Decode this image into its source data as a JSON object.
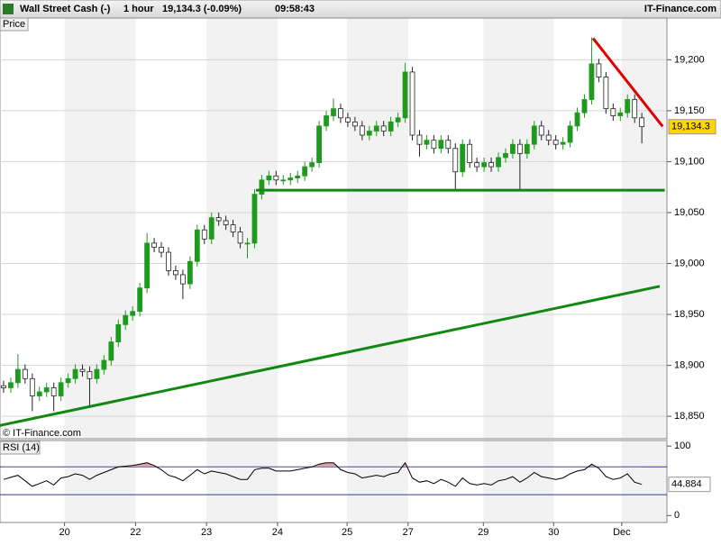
{
  "header": {
    "instrument": "Wall Street Cash (-)",
    "interval": "1 hour",
    "quote": "19,134.3 (-0.09%)",
    "time": "09:58:43",
    "brand": "IT-Finance.com"
  },
  "chart_data": [
    {
      "type": "candlestick",
      "panel_label": "Price",
      "watermark": "© IT-Finance.com",
      "xlim": [
        -0.5,
        92.5
      ],
      "ylim": [
        18828,
        19241
      ],
      "yticks": [
        {
          "value": 18850,
          "label": "18,850"
        },
        {
          "value": 18900,
          "label": "18,900"
        },
        {
          "value": 18950,
          "label": "18,950"
        },
        {
          "value": 19000,
          "label": "19,000"
        },
        {
          "value": 19050,
          "label": "19,050"
        },
        {
          "value": 19100,
          "label": "19,100"
        },
        {
          "value": 19150,
          "label": "19,150"
        },
        {
          "value": 19200,
          "label": "19,200"
        }
      ],
      "up_color": "#1f9a1f",
      "down_color": "#222222",
      "grid": true,
      "open": [
        18880,
        18878,
        18883,
        18896,
        18887,
        18870,
        18874,
        18878,
        18870,
        18883,
        18887,
        18896,
        18894,
        18887,
        18896,
        18905,
        18923,
        18940,
        18949,
        18953,
        18976,
        19020,
        19016,
        19011,
        18993,
        18989,
        18980,
        19002,
        19033,
        19024,
        19045,
        19042,
        19038,
        19031,
        19020,
        19020,
        19068,
        19082,
        19086,
        19082,
        19082,
        19084,
        19086,
        19095,
        19099,
        19135,
        19145,
        19152,
        19143,
        19139,
        19135,
        19126,
        19130,
        19135,
        19130,
        19139,
        19143,
        19188,
        19126,
        19117,
        19121,
        19113,
        19121,
        19113,
        19090,
        19117,
        19099,
        19095,
        19099,
        19095,
        19104,
        19108,
        19117,
        19108,
        19117,
        19135,
        19126,
        19121,
        19117,
        19119,
        19135,
        19148,
        19161,
        19196,
        19183,
        19152,
        19145,
        19148,
        19161,
        19143
      ],
      "high": [
        18885,
        18888,
        18911,
        18901,
        18892,
        18879,
        18883,
        18883,
        18888,
        18892,
        18901,
        18901,
        18899,
        18901,
        18910,
        18928,
        18945,
        18954,
        18958,
        18981,
        19030,
        19025,
        19021,
        19016,
        18998,
        18994,
        19007,
        19038,
        19038,
        19050,
        19050,
        19047,
        19043,
        19036,
        19025,
        19073,
        19087,
        19091,
        19091,
        19087,
        19089,
        19091,
        19100,
        19104,
        19140,
        19150,
        19162,
        19157,
        19148,
        19144,
        19140,
        19135,
        19140,
        19140,
        19144,
        19148,
        19197,
        19193,
        19131,
        19126,
        19126,
        19126,
        19126,
        19118,
        19122,
        19122,
        19104,
        19104,
        19104,
        19109,
        19113,
        19122,
        19122,
        19122,
        19140,
        19140,
        19131,
        19126,
        19124,
        19140,
        19153,
        19166,
        19222,
        19201,
        19188,
        19157,
        19153,
        19166,
        19166,
        19148
      ],
      "low": [
        18873,
        18873,
        18878,
        18882,
        18855,
        18865,
        18869,
        18855,
        18865,
        18878,
        18882,
        18889,
        18860,
        18882,
        18891,
        18900,
        18918,
        18935,
        18944,
        18948,
        18971,
        19011,
        19006,
        18988,
        18984,
        18965,
        18975,
        18997,
        19019,
        19019,
        19037,
        19033,
        19026,
        19015,
        19005,
        19015,
        19063,
        19077,
        19077,
        19077,
        19077,
        19079,
        19081,
        19090,
        19094,
        19130,
        19140,
        19138,
        19134,
        19130,
        19121,
        19121,
        19125,
        19125,
        19125,
        19134,
        19138,
        19121,
        19105,
        19112,
        19108,
        19108,
        19108,
        19072,
        19085,
        19094,
        19090,
        19090,
        19090,
        19090,
        19099,
        19103,
        19073,
        19103,
        19112,
        19121,
        19116,
        19112,
        19112,
        19114,
        19130,
        19143,
        19156,
        19178,
        19147,
        19140,
        19140,
        19143,
        19138,
        19118
      ],
      "close": [
        18878,
        18883,
        18896,
        18887,
        18870,
        18874,
        18878,
        18870,
        18883,
        18887,
        18896,
        18894,
        18887,
        18896,
        18905,
        18923,
        18940,
        18949,
        18953,
        18976,
        19020,
        19016,
        19011,
        18993,
        18989,
        18980,
        19002,
        19033,
        19024,
        19045,
        19042,
        19038,
        19031,
        19020,
        19020,
        19068,
        19082,
        19086,
        19082,
        19082,
        19084,
        19086,
        19095,
        19099,
        19135,
        19145,
        19152,
        19143,
        19139,
        19135,
        19126,
        19130,
        19135,
        19130,
        19139,
        19143,
        19188,
        19126,
        19117,
        19121,
        19113,
        19121,
        19113,
        19090,
        19117,
        19099,
        19095,
        19099,
        19095,
        19104,
        19108,
        19117,
        19108,
        19117,
        19135,
        19126,
        19121,
        19117,
        19119,
        19135,
        19148,
        19161,
        19196,
        19183,
        19152,
        19145,
        19148,
        19161,
        19143,
        19134.3
      ],
      "last_label": "19,134.3",
      "last_label_color": "#ffd700",
      "trendlines": [
        {
          "color": "#e00000",
          "points": [
            [
              82.2,
              19221
            ],
            [
              91.9,
              19134.6
            ]
          ]
        },
        {
          "color": "#118811",
          "points": [
            [
              35.2,
              19072
            ],
            [
              92.2,
              19072
            ]
          ]
        },
        {
          "color": "#118811",
          "points": [
            [
              -0.5,
              18841
            ],
            [
              91.5,
              18977.6
            ]
          ]
        }
      ]
    },
    {
      "type": "line",
      "panel_label": "RSI (14)",
      "color": "#000000",
      "fill_color": "#d9a0a8",
      "xlim": [
        -0.5,
        92.5
      ],
      "ylim": [
        -10,
        108
      ],
      "yticks": [
        100,
        0
      ],
      "levels": [
        70,
        30
      ],
      "level_color": "#3a3a8c",
      "xticks": [
        {
          "value": 8.5,
          "label": "20"
        },
        {
          "value": 18.4,
          "label": "22"
        },
        {
          "value": 28.3,
          "label": "23"
        },
        {
          "value": 38.2,
          "label": "24"
        },
        {
          "value": 47.9,
          "label": "25"
        },
        {
          "value": 56.4,
          "label": "27"
        },
        {
          "value": 66.9,
          "label": "29"
        },
        {
          "value": 76.7,
          "label": "30"
        },
        {
          "value": 86.2,
          "label": "Dec"
        }
      ],
      "values": [
        52,
        55,
        58,
        50,
        42,
        46,
        50,
        44,
        54,
        56,
        60,
        58,
        52,
        58,
        62,
        66,
        70,
        71,
        72,
        74,
        76,
        72,
        66,
        58,
        55,
        50,
        58,
        66,
        60,
        64,
        62,
        60,
        56,
        52,
        52,
        66,
        68,
        68,
        64,
        64,
        64,
        66,
        68,
        70,
        74,
        76,
        76,
        66,
        62,
        60,
        54,
        56,
        58,
        56,
        60,
        62,
        76,
        54,
        48,
        50,
        46,
        52,
        48,
        42,
        54,
        46,
        44,
        46,
        44,
        50,
        52,
        56,
        48,
        54,
        62,
        56,
        54,
        52,
        54,
        60,
        64,
        66,
        74,
        68,
        56,
        52,
        54,
        60,
        48,
        44.884
      ]
    }
  ]
}
